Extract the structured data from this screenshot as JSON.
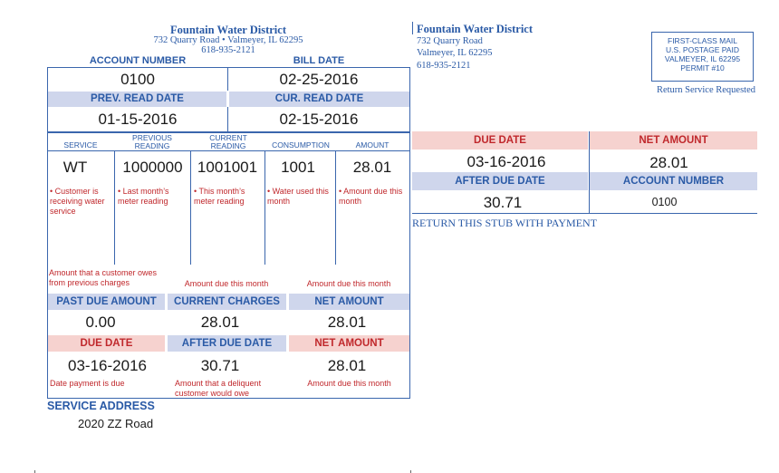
{
  "bill": {
    "district_name": "Fountain Water District",
    "district_address_line": "732 Quarry Road • Valmeyer, IL 62295",
    "district_phone": "618-935-2121",
    "account_number_label": "ACCOUNT NUMBER",
    "bill_date_label": "BILL DATE",
    "account_number": "0100",
    "bill_date": "02-25-2016",
    "prev_read_label": "PREV. READ DATE",
    "cur_read_label": "CUR. READ DATE",
    "prev_read_date": "01-15-2016",
    "cur_read_date": "02-15-2016",
    "columns": [
      {
        "label": "SERVICE",
        "value": "WT",
        "note": "• Customer is receiving water service"
      },
      {
        "label": "PREVIOUS READING",
        "value": "1000000",
        "note": "• Last month’s meter reading"
      },
      {
        "label": "CURRENT READING",
        "value": "1001001",
        "note": "• This month’s meter reading"
      },
      {
        "label": "CONSUMPTION",
        "value": "1001",
        "note": "• Water used this month"
      },
      {
        "label": "AMOUNT",
        "value": "28.01",
        "note": "• Amount due this month"
      }
    ],
    "note_past_due": "Amount that a customer owes from previous charges",
    "note_current": "Amount due this month",
    "note_net": "Amount due this month",
    "past_due_label": "PAST DUE AMOUNT",
    "current_charges_label": "CURRENT CHARGES",
    "net_amount_label": "NET AMOUNT",
    "past_due_value": "0.00",
    "current_charges_value": "28.01",
    "net_amount_value": "28.01",
    "due_date_label": "DUE DATE",
    "after_due_label": "AFTER DUE DATE",
    "net_amount_label2": "NET AMOUNT",
    "due_date_value": "03-16-2016",
    "after_due_value": "30.71",
    "net_amount_value2": "28.01",
    "note_due_date": "Date payment is due",
    "note_delinquent": "Amount that a deliquent customer would owe",
    "note_net2": "Amount due this month",
    "service_address_label": "SERVICE ADDRESS",
    "service_address": "2020 ZZ Road"
  },
  "stub": {
    "district_name": "Fountain Water District",
    "address_1": "732 Quarry Road",
    "address_2": "Valmeyer, IL 62295",
    "phone": "618-935-2121",
    "postage_1": "FIRST-CLASS MAIL",
    "postage_2": "U.S. POSTAGE PAID",
    "postage_3": "VALMEYER, IL 62295",
    "postage_4": "PERMIT #10",
    "return_service": "Return Service Requested",
    "due_date_label": "DUE DATE",
    "net_amount_label": "NET AMOUNT",
    "due_date_value": "03-16-2016",
    "net_amount_value": "28.01",
    "after_due_label": "AFTER DUE DATE",
    "account_number_label": "ACCOUNT NUMBER",
    "after_due_value": "30.71",
    "account_number_value": "0100",
    "return_text": "RETURN THIS STUB WITH PAYMENT"
  }
}
